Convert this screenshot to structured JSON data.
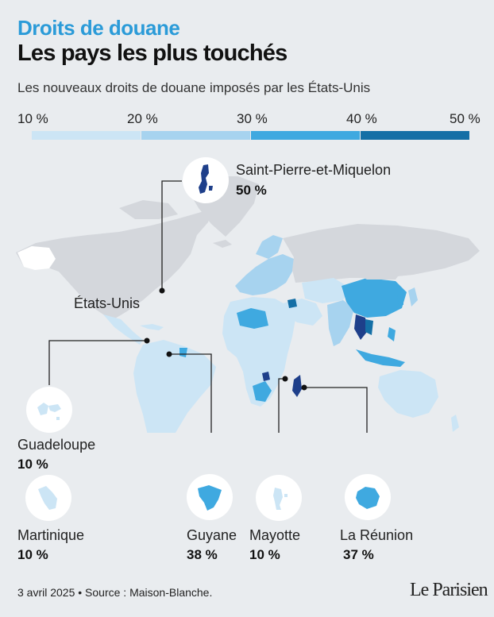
{
  "header": {
    "kicker": "Droits de douane",
    "title": "Les pays les plus touchés",
    "subtitle": "Les nouveaux droits de douane imposés par les États-Unis"
  },
  "legend": {
    "labels": [
      "10 %",
      "20 %",
      "30 %",
      "40 %",
      "50 %"
    ],
    "colors": [
      "#cce5f5",
      "#a7d3ef",
      "#3fa9e0",
      "#146fa6"
    ]
  },
  "map": {
    "usa_label": "États-Unis",
    "colors": {
      "ocean": "#e9ecef",
      "land_neutral": "#d4d7dc",
      "tier10": "#cce5f5",
      "tier20": "#a7d3ef",
      "tier30": "#3fa9e0",
      "tier40": "#146fa6",
      "tier50": "#1e3f8a"
    }
  },
  "territories": {
    "spm": {
      "name": "Saint-Pierre-et-Miquelon",
      "rate": "50 %"
    },
    "guadeloupe": {
      "name": "Guadeloupe",
      "rate": "10 %"
    },
    "martinique": {
      "name": "Martinique",
      "rate": "10 %"
    },
    "guyane": {
      "name": "Guyane",
      "rate": "38 %"
    },
    "mayotte": {
      "name": "Mayotte",
      "rate": "10 %"
    },
    "reunion": {
      "name": "La Réunion",
      "rate": "37 %"
    }
  },
  "footer": {
    "source": "3 avril 2025 • Source : Maison-Blanche.",
    "logo": "Le Parisien"
  }
}
